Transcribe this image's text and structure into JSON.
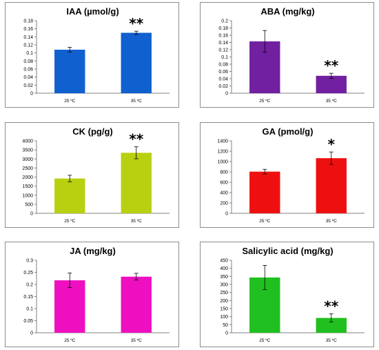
{
  "chart_data": [
    {
      "type": "bar",
      "title": "IAA (µmol/g)",
      "categories": [
        "25 ºC",
        "35 ºC"
      ],
      "values": [
        0.108,
        0.15
      ],
      "errors": [
        0.006,
        0.004
      ],
      "significance": [
        "",
        "**"
      ],
      "color": "#1060d0",
      "ylim": [
        0,
        0.18
      ],
      "ytick_step": 0.02,
      "yticks": [
        "0",
        "0.02",
        "0.04",
        "0.06",
        "0.08",
        "0.1",
        "0.12",
        "0.14",
        "0.16",
        "0.18"
      ]
    },
    {
      "type": "bar",
      "title": "ABA (mg/kg)",
      "categories": [
        "25 ºC",
        "35 ºC"
      ],
      "values": [
        0.143,
        0.048
      ],
      "errors": [
        0.03,
        0.007
      ],
      "significance": [
        "",
        "**"
      ],
      "color": "#7020a0",
      "ylim": [
        0,
        0.2
      ],
      "ytick_step": 0.02,
      "yticks": [
        "0",
        "0.02",
        "0.04",
        "0.06",
        "0.08",
        "0.1",
        "0.12",
        "0.14",
        "0.16",
        "0.18",
        "0.2"
      ]
    },
    {
      "type": "bar",
      "title": "CK (pg/g)",
      "categories": [
        "25 ºC",
        "35 ºC"
      ],
      "values": [
        1920,
        3340
      ],
      "errors": [
        180,
        330
      ],
      "significance": [
        "",
        "**"
      ],
      "color": "#b8d010",
      "ylim": [
        0,
        4000
      ],
      "ytick_step": 500,
      "yticks": [
        "0",
        "500",
        "1000",
        "1500",
        "2000",
        "2500",
        "3000",
        "3500",
        "4000"
      ]
    },
    {
      "type": "bar",
      "title": "GA (pmol/g)",
      "categories": [
        "25 ºC",
        "35 ºC"
      ],
      "values": [
        805,
        1065
      ],
      "errors": [
        45,
        120
      ],
      "significance": [
        "",
        "*"
      ],
      "color": "#ee1010",
      "ylim": [
        0,
        1400
      ],
      "ytick_step": 200,
      "yticks": [
        "0",
        "200",
        "400",
        "600",
        "800",
        "1000",
        "1200",
        "1400"
      ]
    },
    {
      "type": "bar",
      "title": "JA (mg/kg)",
      "categories": [
        "25 ºC",
        "35 ºC"
      ],
      "values": [
        0.217,
        0.232
      ],
      "errors": [
        0.03,
        0.014
      ],
      "significance": [
        "",
        ""
      ],
      "color": "#ee10c0",
      "ylim": [
        0,
        0.3
      ],
      "ytick_step": 0.05,
      "yticks": [
        "0",
        "0.05",
        "0.1",
        "0.15",
        "0.2",
        "0.25",
        "0.3"
      ]
    },
    {
      "type": "bar",
      "title": "Salicylic acid (mg/kg)",
      "categories": [
        "25 ºC",
        "35 ºC"
      ],
      "values": [
        343,
        92
      ],
      "errors": [
        75,
        25
      ],
      "significance": [
        "",
        "**"
      ],
      "color": "#20c020",
      "ylim": [
        0,
        450
      ],
      "ytick_step": 50,
      "yticks": [
        "0",
        "50",
        "100",
        "150",
        "200",
        "250",
        "300",
        "350",
        "400",
        "450"
      ]
    }
  ]
}
